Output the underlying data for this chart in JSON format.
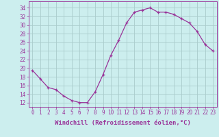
{
  "x": [
    0,
    1,
    2,
    3,
    4,
    5,
    6,
    7,
    8,
    9,
    10,
    11,
    12,
    13,
    14,
    15,
    16,
    17,
    18,
    19,
    20,
    21,
    22,
    23
  ],
  "y": [
    19.5,
    17.5,
    15.5,
    15.0,
    13.5,
    12.5,
    12.0,
    12.0,
    14.5,
    18.5,
    23.0,
    26.5,
    30.5,
    33.0,
    33.5,
    34.0,
    33.0,
    33.0,
    32.5,
    31.5,
    30.5,
    28.5,
    25.5,
    24.0
  ],
  "line_color": "#993399",
  "marker": "+",
  "bg_color": "#cceeee",
  "grid_color": "#aacccc",
  "xlabel": "Windchill (Refroidissement éolien,°C)",
  "ylabel_ticks": [
    12,
    14,
    16,
    18,
    20,
    22,
    24,
    26,
    28,
    30,
    32,
    34
  ],
  "xlim": [
    -0.5,
    23.5
  ],
  "ylim": [
    11,
    35.5
  ],
  "xtick_labels": [
    "0",
    "1",
    "2",
    "3",
    "4",
    "5",
    "6",
    "7",
    "8",
    "9",
    "10",
    "11",
    "12",
    "13",
    "14",
    "15",
    "16",
    "17",
    "18",
    "19",
    "20",
    "21",
    "22",
    "23"
  ],
  "xlabel_color": "#993399",
  "tick_color": "#993399",
  "axes_color": "#993399",
  "xlabel_fontsize": 6.5,
  "tick_fontsize": 5.5,
  "linewidth": 0.9,
  "markersize": 3.5
}
